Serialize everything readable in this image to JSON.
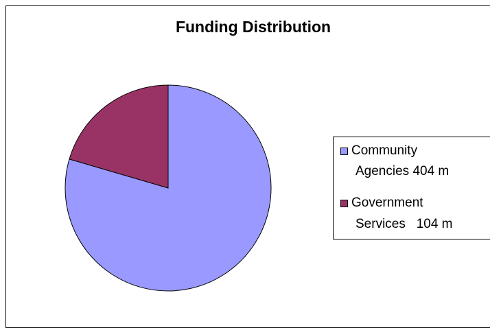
{
  "chart_data": {
    "type": "pie",
    "title": "Funding Distribution",
    "categories": [
      "Community Agencies",
      "Government Services"
    ],
    "values": [
      404,
      104
    ],
    "unit": "m",
    "colors": [
      "#9999ff",
      "#993366"
    ],
    "legend": {
      "placement": "right",
      "entries": [
        {
          "line1": "Community",
          "line2": "Agencies 404 m",
          "color": "#9999ff"
        },
        {
          "line1": "Government",
          "line2": "Services   104 m",
          "color": "#993366"
        }
      ]
    }
  }
}
